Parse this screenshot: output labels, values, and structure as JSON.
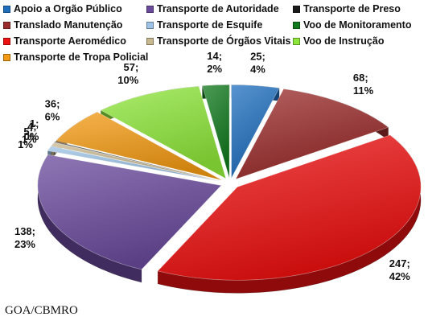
{
  "chart_data": {
    "type": "pie",
    "title": "",
    "legend_position": "top",
    "slices": [
      {
        "name": "Apoio a Orgão Público",
        "value": 25,
        "percent": "4%",
        "label_value": "25;",
        "color": "#1f6fbf"
      },
      {
        "name": "Translado Manutenção",
        "value": 68,
        "percent": "11%",
        "label_value": "68;",
        "color": "#9b2c2c"
      },
      {
        "name": "Transporte Aeromédico",
        "value": 247,
        "percent": "42%",
        "label_value": "247;",
        "color": "#ee1111"
      },
      {
        "name": "Transporte de Autoridade",
        "value": 138,
        "percent": "23%",
        "label_value": "138;",
        "color": "#6a4a9c"
      },
      {
        "name": "Transporte de Esquife",
        "value": 5,
        "percent": "1%",
        "label_value": "5;",
        "color": "#9ec3e6"
      },
      {
        "name": "Transporte de Órgãos Vitais",
        "value": 4,
        "percent": "1%",
        "label_value": "4;",
        "color": "#c8b890"
      },
      {
        "name": "Transporte de Preso",
        "value": 1,
        "percent": "0%",
        "label_value": "1;",
        "color": "#1a1a1a"
      },
      {
        "name": "Transporte de Tropa Policial",
        "value": 36,
        "percent": "6%",
        "label_value": "36;",
        "color": "#f39a12"
      },
      {
        "name": "Voo de Instrução",
        "value": 57,
        "percent": "10%",
        "label_value": "57;",
        "color": "#8ee63a"
      },
      {
        "name": "Voo de Monitoramento",
        "value": 14,
        "percent": "2%",
        "label_value": "14;",
        "color": "#127a1e"
      }
    ],
    "legend_order": [
      "Apoio a Orgão Público",
      "Transporte de Autoridade",
      "Transporte de Preso",
      "Translado Manutenção",
      "Transporte de Esquife",
      "Voo de Monitoramento",
      "Transporte Aeromédico",
      "Transporte de Órgãos Vitais",
      "Voo de Instrução",
      "Transporte de Tropa Policial"
    ]
  },
  "source_text": "GOA/CBMRO"
}
